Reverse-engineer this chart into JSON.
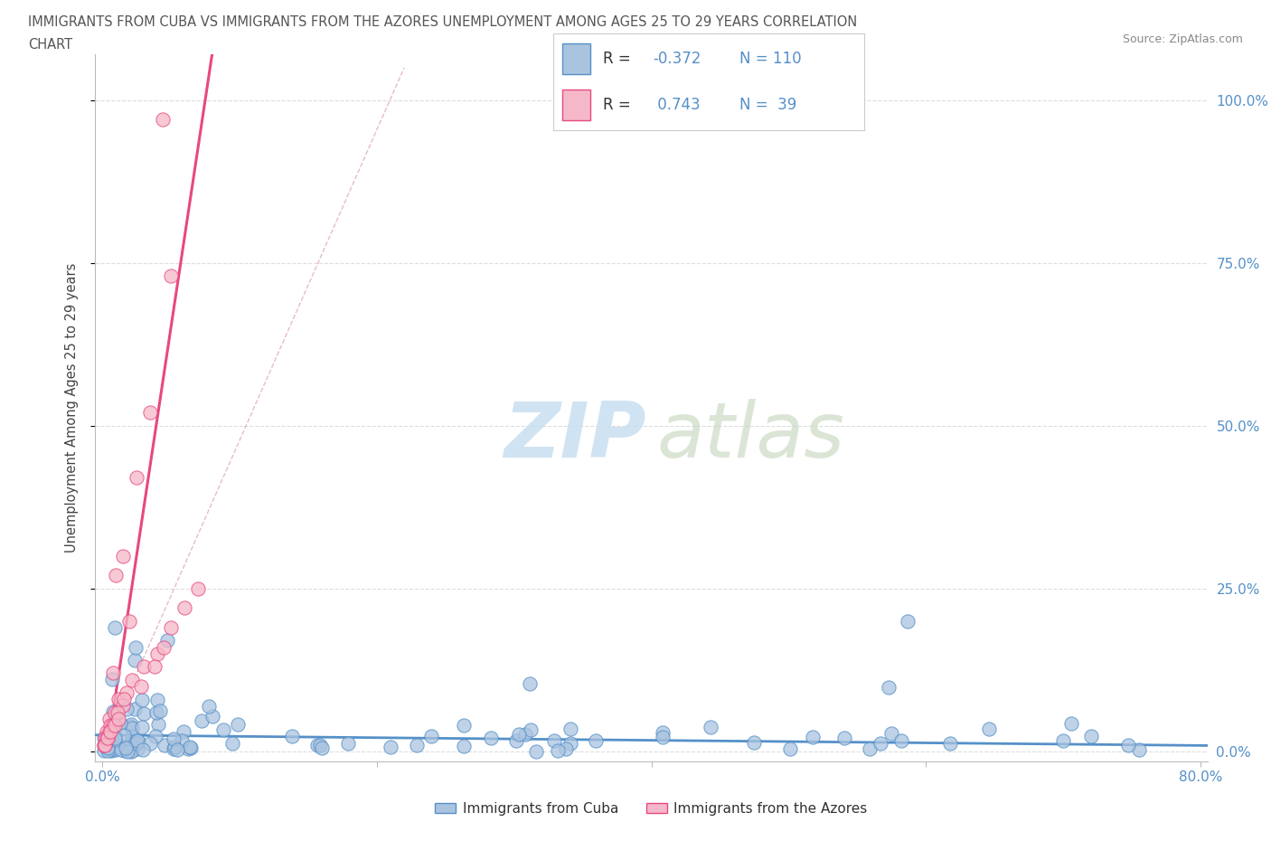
{
  "title_line1": "IMMIGRANTS FROM CUBA VS IMMIGRANTS FROM THE AZORES UNEMPLOYMENT AMONG AGES 25 TO 29 YEARS CORRELATION",
  "title_line2": "CHART",
  "source": "Source: ZipAtlas.com",
  "ylabel": "Unemployment Among Ages 25 to 29 years",
  "xmin": -0.005,
  "xmax": 0.805,
  "ymin": -0.015,
  "ymax": 1.07,
  "x_ticks": [
    0.0,
    0.2,
    0.4,
    0.6,
    0.8
  ],
  "x_tick_labels": [
    "0.0%",
    "",
    "",
    "",
    "80.0%"
  ],
  "y_tick_labels_right": [
    "0.0%",
    "25.0%",
    "50.0%",
    "75.0%",
    "100.0%"
  ],
  "y_tick_positions": [
    0.0,
    0.25,
    0.5,
    0.75,
    1.0
  ],
  "R_cuba": -0.372,
  "N_cuba": 110,
  "R_azores": 0.743,
  "N_azores": 39,
  "color_cuba": "#aac4e0",
  "color_azores": "#f5b8c8",
  "line_color_cuba": "#5590c8",
  "line_color_azores": "#e84880",
  "ref_line_color": "#e8b0c0",
  "background_color": "#ffffff",
  "grid_color": "#dddddd",
  "title_color": "#555555",
  "axis_color": "#5590c8",
  "legend_text_color": "#333333",
  "legend_stat_color": "#5590c8",
  "watermark_zip_color": "#c8dff0",
  "watermark_atlas_color": "#c8d8c0"
}
